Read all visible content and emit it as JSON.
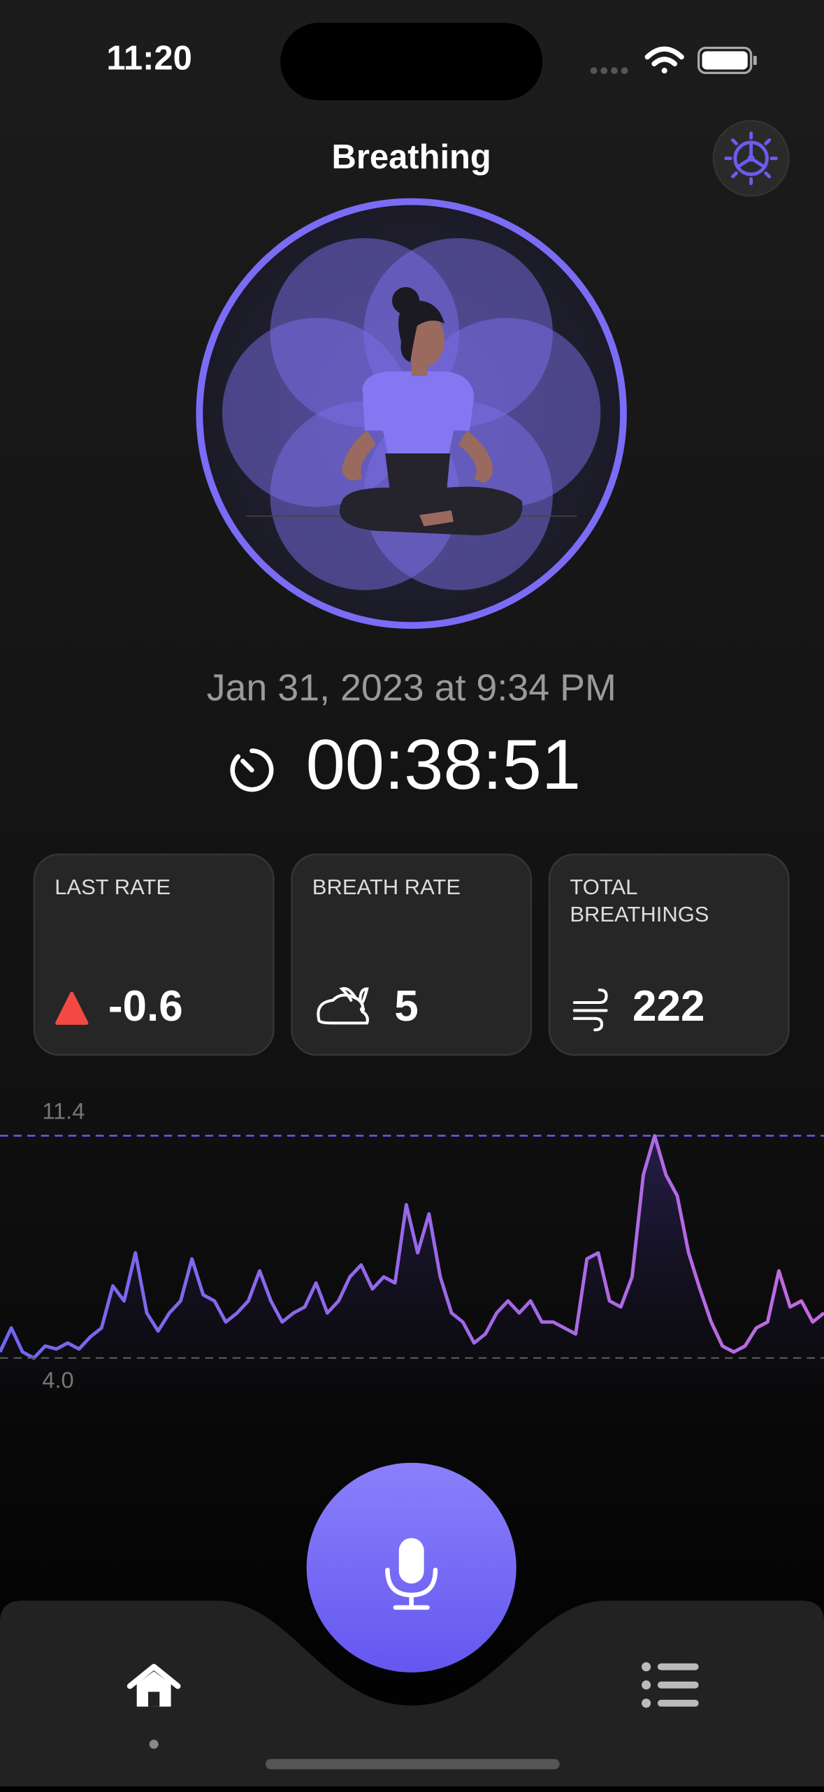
{
  "status_bar": {
    "time": "11:20"
  },
  "header": {
    "title": "Breathing"
  },
  "session": {
    "date": "Jan 31, 2023 at 9:34 PM",
    "duration": "00:38:51"
  },
  "stats": [
    {
      "label": "LAST RATE",
      "value": -0.6
    },
    {
      "label": "BREATH RATE",
      "value": 5
    },
    {
      "label": "TOTAL BREATHINGS",
      "value": 222
    }
  ],
  "chart_data": {
    "type": "line",
    "color": "#b06ae8",
    "values": [
      4.2,
      5.0,
      4.2,
      4.0,
      4.4,
      4.3,
      4.5,
      4.3,
      4.7,
      5.0,
      6.4,
      5.9,
      7.5,
      5.5,
      4.9,
      5.5,
      5.9,
      7.3,
      6.1,
      5.9,
      5.2,
      5.5,
      5.9,
      6.9,
      5.9,
      5.2,
      5.5,
      5.7,
      6.5,
      5.5,
      5.9,
      6.7,
      7.1,
      6.3,
      6.7,
      6.5,
      9.1,
      7.5,
      8.8,
      6.7,
      5.5,
      5.2,
      4.5,
      4.8,
      5.5,
      5.9,
      5.5,
      5.9,
      5.2,
      5.2,
      5.0,
      4.8,
      7.3,
      7.5,
      5.9,
      5.7,
      6.7,
      10.1,
      11.4,
      10.1,
      9.4,
      7.5,
      6.3,
      5.2,
      4.4,
      4.2,
      4.4,
      5.0,
      5.2,
      6.9,
      5.7,
      5.9,
      5.2,
      5.5
    ],
    "ylim": [
      1.8,
      12.8
    ],
    "yticks": [
      {
        "value": 4,
        "label": "4.0"
      },
      11.4
    ]
  }
}
